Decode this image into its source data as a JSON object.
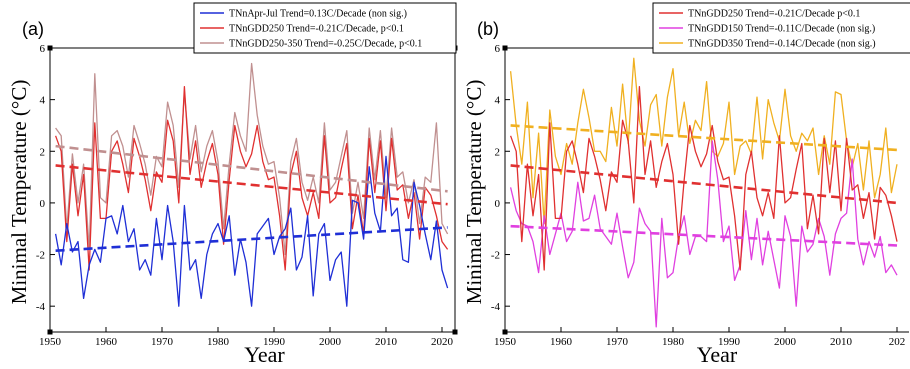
{
  "chart_data": [
    {
      "type": "line",
      "panel_label": "(a)",
      "xlabel": "Year",
      "ylabel": "Minimal Temperature (°C)",
      "xlim": [
        1950,
        2021
      ],
      "ylim": [
        -5,
        6
      ],
      "xticks": [
        "1950",
        "1960",
        "1970",
        "1980",
        "1990",
        "2000",
        "2010",
        "2020"
      ],
      "yticks": [
        "-4",
        "-2",
        "0",
        "2",
        "4",
        "6"
      ],
      "grid": false,
      "legend_position": "top-right",
      "legend": [
        {
          "label": "TNnApr-Jul Trend=0.13C/Decade (non sig.)",
          "color": "#1f2fd6"
        },
        {
          "label": "TNnGDD250 Trend=-0.21C/Decade, p<0.1",
          "color": "#e03030"
        },
        {
          "label": "TNnGDD250-350 Trend=-0.25C/Decade, p<0.1",
          "color": "#c09090"
        }
      ],
      "series": [
        {
          "name": "TNnApr-Jul",
          "color": "#1f2fd6",
          "x": [
            1951,
            1952,
            1953,
            1954,
            1955,
            1956,
            1957,
            1958,
            1959,
            1960,
            1961,
            1962,
            1963,
            1964,
            1965,
            1966,
            1967,
            1968,
            1969,
            1970,
            1971,
            1972,
            1973,
            1974,
            1975,
            1976,
            1977,
            1978,
            1979,
            1980,
            1981,
            1982,
            1983,
            1984,
            1985,
            1986,
            1987,
            1988,
            1989,
            1990,
            1991,
            1992,
            1993,
            1994,
            1995,
            1996,
            1997,
            1998,
            1999,
            2000,
            2001,
            2002,
            2003,
            2004,
            2005,
            2006,
            2007,
            2008,
            2009,
            2010,
            2011,
            2012,
            2013,
            2014,
            2015,
            2016,
            2017,
            2018,
            2019,
            2020,
            2021
          ],
          "y": [
            -1.2,
            -2.4,
            -0.8,
            -1.9,
            -1.5,
            -3.7,
            -2.4,
            -1.8,
            -2.3,
            -0.6,
            -0.5,
            -1.2,
            -0.1,
            -1.5,
            -1.0,
            -2.6,
            -2.2,
            -2.8,
            -0.6,
            -2.2,
            -0.1,
            -1.5,
            -4.0,
            -0.1,
            -2.6,
            -2.2,
            -3.7,
            -2.0,
            -1.2,
            -0.8,
            -1.5,
            -0.5,
            -2.8,
            -1.4,
            -2.3,
            -4.0,
            -1.2,
            -0.9,
            -0.6,
            -2.0,
            -1.3,
            -1.0,
            -0.2,
            -2.6,
            -2.1,
            -0.5,
            -3.6,
            -1.2,
            -0.8,
            -3.0,
            -2.2,
            -1.9,
            -4.0,
            0.1,
            0.0,
            -1.4,
            1.4,
            -0.4,
            -1.1,
            1.8,
            -0.5,
            -0.2,
            -2.2,
            -2.3,
            0.8,
            -0.1,
            -1.2,
            -2.2,
            -0.7,
            -2.6,
            -3.3
          ]
        },
        {
          "name": "TNnGDD250",
          "color": "#e03030",
          "x": [
            1951,
            1952,
            1953,
            1954,
            1955,
            1956,
            1957,
            1958,
            1959,
            1960,
            1961,
            1962,
            1963,
            1964,
            1965,
            1966,
            1967,
            1968,
            1969,
            1970,
            1971,
            1972,
            1973,
            1974,
            1975,
            1976,
            1977,
            1978,
            1979,
            1980,
            1981,
            1982,
            1983,
            1984,
            1985,
            1986,
            1987,
            1988,
            1989,
            1990,
            1991,
            1992,
            1993,
            1994,
            1995,
            1996,
            1997,
            1998,
            1999,
            2000,
            2001,
            2002,
            2003,
            2004,
            2005,
            2006,
            2007,
            2008,
            2009,
            2010,
            2011,
            2012,
            2013,
            2014,
            2015,
            2016,
            2017,
            2018,
            2019,
            2020,
            2021
          ],
          "y": [
            2.6,
            2.0,
            -1.5,
            1.5,
            -0.5,
            1.1,
            -2.6,
            3.1,
            -0.6,
            -0.6,
            2.0,
            2.4,
            1.5,
            0.4,
            2.5,
            1.8,
            0.9,
            -0.3,
            1.2,
            0.8,
            3.2,
            2.4,
            0.0,
            4.5,
            1.1,
            2.4,
            0.6,
            1.6,
            2.3,
            1.1,
            -1.6,
            0.9,
            3.0,
            2.0,
            1.4,
            1.9,
            3.0,
            1.6,
            0.9,
            1.0,
            -0.5,
            -2.6,
            1.1,
            2.0,
            0.2,
            -0.5,
            0.4,
            -0.6,
            2.6,
            0.0,
            0.2,
            1.3,
            2.3,
            -1.0,
            0.3,
            -1.2,
            2.5,
            0.4,
            2.4,
            -0.3,
            2.5,
            0.5,
            0.7,
            -0.6,
            0.4,
            -1.4,
            0.6,
            0.3,
            -0.5,
            -1.5,
            -1.8
          ]
        },
        {
          "name": "TNnGDD250-350",
          "color": "#c09090",
          "x": [
            1951,
            1952,
            1953,
            1954,
            1955,
            1956,
            1957,
            1958,
            1959,
            1960,
            1961,
            1962,
            1963,
            1964,
            1965,
            1966,
            1967,
            1968,
            1969,
            1970,
            1971,
            1972,
            1973,
            1974,
            1975,
            1976,
            1977,
            1978,
            1979,
            1980,
            1981,
            1982,
            1983,
            1984,
            1985,
            1986,
            1987,
            1988,
            1989,
            1990,
            1991,
            1992,
            1993,
            1994,
            1995,
            1996,
            1997,
            1998,
            1999,
            2000,
            2001,
            2002,
            2003,
            2004,
            2005,
            2006,
            2007,
            2008,
            2009,
            2010,
            2011,
            2012,
            2013,
            2014,
            2015,
            2016,
            2017,
            2018,
            2019,
            2020,
            2021
          ],
          "y": [
            2.9,
            2.6,
            -1.0,
            1.9,
            0.0,
            1.5,
            -1.8,
            5.0,
            0.2,
            0.0,
            2.6,
            2.8,
            2.2,
            1.0,
            3.0,
            2.3,
            1.5,
            0.3,
            1.8,
            1.4,
            3.9,
            3.0,
            0.6,
            4.3,
            1.7,
            3.0,
            1.2,
            2.2,
            2.8,
            1.6,
            -1.0,
            1.5,
            3.5,
            2.6,
            2.0,
            5.4,
            3.4,
            2.2,
            1.5,
            1.6,
            0.2,
            -2.0,
            1.6,
            2.5,
            0.8,
            0.1,
            1.0,
            0.0,
            3.1,
            0.5,
            0.8,
            1.8,
            2.8,
            -0.4,
            0.8,
            -0.6,
            2.9,
            0.9,
            2.8,
            0.2,
            2.9,
            1.0,
            1.2,
            0.0,
            0.9,
            -0.8,
            1.0,
            0.8,
            3.1,
            -0.8,
            -1.2
          ]
        }
      ],
      "trends": [
        {
          "name": "TNnApr-Jul trend",
          "color": "#1f2fd6",
          "x": [
            1951,
            2021
          ],
          "y": [
            -1.85,
            -0.95
          ]
        },
        {
          "name": "TNnGDD250 trend",
          "color": "#e03030",
          "x": [
            1951,
            2021
          ],
          "y": [
            1.45,
            -0.05
          ]
        },
        {
          "name": "TNnGDD250-350 trend",
          "color": "#c09090",
          "x": [
            1951,
            2021
          ],
          "y": [
            2.2,
            0.45
          ]
        }
      ]
    },
    {
      "type": "line",
      "panel_label": "(b)",
      "xlabel": "Year",
      "ylabel": "Minimal Temperature (°C)",
      "xlim": [
        1950,
        2020
      ],
      "ylim": [
        -5,
        6
      ],
      "xticks": [
        "1950",
        "1960",
        "1970",
        "1980",
        "1990",
        "2000",
        "2010",
        "202"
      ],
      "yticks": [
        "-4",
        "-2",
        "0",
        "2",
        "4",
        "6"
      ],
      "grid": false,
      "legend_position": "top-right",
      "legend": [
        {
          "label": "TNnGDD250 Trend=-0.21C/Decade p<0.1",
          "color": "#e03030"
        },
        {
          "label": "TNnGDD150 Trend=-0.11C/Decade (non sig.)",
          "color": "#e040e0"
        },
        {
          "label": "TNnGDD350 Trend=-0.14C/Decade (non sig.)",
          "color": "#f0b020"
        }
      ],
      "series": [
        {
          "name": "TNnGDD250",
          "color": "#e03030",
          "x": [
            1951,
            1952,
            1953,
            1954,
            1955,
            1956,
            1957,
            1958,
            1959,
            1960,
            1961,
            1962,
            1963,
            1964,
            1965,
            1966,
            1967,
            1968,
            1969,
            1970,
            1971,
            1972,
            1973,
            1974,
            1975,
            1976,
            1977,
            1978,
            1979,
            1980,
            1981,
            1982,
            1983,
            1984,
            1985,
            1986,
            1987,
            1988,
            1989,
            1990,
            1991,
            1992,
            1993,
            1994,
            1995,
            1996,
            1997,
            1998,
            1999,
            2000,
            2001,
            2002,
            2003,
            2004,
            2005,
            2006,
            2007,
            2008,
            2009,
            2010,
            2011,
            2012,
            2013,
            2014,
            2015,
            2016,
            2017,
            2018,
            2019,
            2020
          ],
          "y": [
            2.6,
            2.0,
            -1.5,
            1.5,
            -0.5,
            1.1,
            -2.6,
            3.1,
            -0.6,
            -0.6,
            2.0,
            2.4,
            1.5,
            0.4,
            2.5,
            1.8,
            0.9,
            -0.3,
            1.2,
            0.8,
            3.2,
            2.4,
            0.0,
            4.5,
            1.1,
            2.4,
            0.6,
            1.6,
            2.3,
            1.1,
            -1.6,
            0.9,
            3.0,
            2.0,
            1.4,
            1.9,
            3.0,
            1.6,
            0.9,
            1.0,
            -0.5,
            -2.6,
            1.1,
            2.0,
            0.2,
            -0.5,
            0.4,
            -0.6,
            2.6,
            0.0,
            0.2,
            1.3,
            2.3,
            -1.0,
            0.3,
            -1.2,
            2.5,
            0.4,
            2.4,
            -0.3,
            2.5,
            0.5,
            0.7,
            -0.6,
            0.4,
            -1.4,
            0.6,
            0.3,
            -0.5,
            -1.5
          ]
        },
        {
          "name": "TNnGDD150",
          "color": "#e040e0",
          "x": [
            1951,
            1952,
            1953,
            1954,
            1955,
            1956,
            1957,
            1958,
            1959,
            1960,
            1961,
            1962,
            1963,
            1964,
            1965,
            1966,
            1967,
            1968,
            1969,
            1970,
            1971,
            1972,
            1973,
            1974,
            1975,
            1976,
            1977,
            1978,
            1979,
            1980,
            1981,
            1982,
            1983,
            1984,
            1985,
            1986,
            1987,
            1988,
            1989,
            1990,
            1991,
            1992,
            1993,
            1994,
            1995,
            1996,
            1997,
            1998,
            1999,
            2000,
            2001,
            2002,
            2003,
            2004,
            2005,
            2006,
            2007,
            2008,
            2009,
            2010,
            2011,
            2012,
            2013,
            2014,
            2015,
            2016,
            2017,
            2018,
            2019,
            2020
          ],
          "y": [
            0.6,
            -0.3,
            -0.8,
            -0.9,
            -1.5,
            -2.7,
            -0.5,
            -2.0,
            -1.2,
            -0.4,
            -1.5,
            -1.1,
            0.8,
            -0.7,
            -0.6,
            0.3,
            -1.0,
            -1.3,
            -1.6,
            -0.4,
            -1.7,
            -2.9,
            -2.3,
            -0.2,
            -0.8,
            -1.1,
            -4.8,
            -0.6,
            -2.9,
            -2.7,
            -1.3,
            -0.5,
            -2.0,
            -1.3,
            -1.3,
            -1.5,
            2.4,
            0.9,
            -1.5,
            -0.9,
            -3.0,
            -2.4,
            -0.3,
            -2.2,
            -0.6,
            -2.4,
            -1.1,
            -2.2,
            -3.3,
            -0.5,
            -1.3,
            -4.0,
            -0.9,
            -1.9,
            -1.6,
            -0.6,
            -1.3,
            -2.8,
            -1.2,
            -0.6,
            -0.4,
            1.7,
            -1.4,
            -2.4,
            -1.5,
            -2.1,
            -1.3,
            -2.7,
            -2.4,
            -2.8
          ]
        },
        {
          "name": "TNnGDD350",
          "color": "#f0b020",
          "x": [
            1951,
            1952,
            1953,
            1954,
            1955,
            1956,
            1957,
            1958,
            1959,
            1960,
            1961,
            1962,
            1963,
            1964,
            1965,
            1966,
            1967,
            1968,
            1969,
            1970,
            1971,
            1972,
            1973,
            1974,
            1975,
            1976,
            1977,
            1978,
            1979,
            1980,
            1981,
            1982,
            1983,
            1984,
            1985,
            1986,
            1987,
            1988,
            1989,
            1990,
            1991,
            1992,
            1993,
            1994,
            1995,
            1996,
            1997,
            1998,
            1999,
            2000,
            2001,
            2002,
            2003,
            2004,
            2005,
            2006,
            2007,
            2008,
            2009,
            2010,
            2011,
            2012,
            2013,
            2014,
            2015,
            2016,
            2017,
            2018,
            2019,
            2020
          ],
          "y": [
            5.1,
            3.0,
            1.5,
            3.9,
            0.2,
            2.7,
            -0.8,
            3.6,
            1.8,
            1.1,
            2.3,
            1.5,
            3.1,
            4.4,
            3.3,
            2.0,
            2.0,
            1.6,
            3.7,
            2.2,
            4.6,
            2.3,
            5.6,
            3.2,
            2.2,
            3.8,
            4.2,
            2.2,
            4.1,
            5.2,
            2.6,
            3.9,
            2.3,
            3.2,
            2.8,
            4.7,
            2.0,
            1.8,
            2.3,
            3.9,
            1.1,
            2.2,
            2.4,
            1.9,
            4.1,
            1.7,
            4.0,
            3.1,
            2.4,
            4.4,
            2.6,
            2.0,
            2.7,
            2.4,
            2.9,
            1.1,
            2.6,
            1.5,
            4.3,
            4.2,
            2.4,
            1.4,
            2.3,
            0.5,
            2.4,
            0.2,
            1.1,
            2.9,
            0.4,
            1.5
          ]
        }
      ],
      "trends": [
        {
          "name": "TNnGDD250 trend",
          "color": "#e03030",
          "x": [
            1951,
            2020
          ],
          "y": [
            1.45,
            0.0
          ]
        },
        {
          "name": "TNnGDD150 trend",
          "color": "#e040e0",
          "x": [
            1951,
            2020
          ],
          "y": [
            -0.9,
            -1.65
          ]
        },
        {
          "name": "TNnGDD350 trend",
          "color": "#f0b020",
          "x": [
            1951,
            2020
          ],
          "y": [
            3.0,
            2.05
          ]
        }
      ]
    }
  ]
}
